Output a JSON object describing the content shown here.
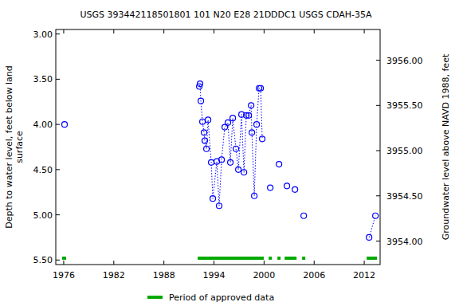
{
  "chart_data": {
    "type": "scatter",
    "title": "USGS 393442118501801 101  N20 E28 21DDDC1    USGS CDAH-35A",
    "ylabel": [
      "Depth to water level, feet below land",
      "surface"
    ],
    "y2label": "Groundwater level above NAVD 1988, feet",
    "xlim": [
      1975.05,
      2013.9
    ],
    "xticks": [
      1976,
      1982,
      1988,
      1994,
      2000,
      2006,
      2012
    ],
    "ylim": [
      5.55,
      2.95
    ],
    "yticks": [
      {
        "value": 3.0,
        "label": "3.00"
      },
      {
        "value": 3.5,
        "label": "3.50"
      },
      {
        "value": 4.0,
        "label": "4.00"
      },
      {
        "value": 4.5,
        "label": "4.50"
      },
      {
        "value": 5.0,
        "label": "5.00"
      },
      {
        "value": 5.5,
        "label": "5.50"
      }
    ],
    "y2lim": [
      3953.74,
      3956.34
    ],
    "y2ticks": [
      {
        "value": 3954,
        "label": "3954.00"
      },
      {
        "value": 3954.5,
        "label": "3954.50"
      },
      {
        "value": 3955,
        "label": "3955.00"
      },
      {
        "value": 3955.5,
        "label": "3955.50"
      },
      {
        "value": 3956,
        "label": "3956.00"
      }
    ],
    "series": [
      {
        "name": "Depth to water level",
        "color": "#0000ff",
        "marker": "open-circle",
        "line_style": "dotted",
        "x": [
          1976.1,
          null,
          1992.24,
          1992.33,
          1992.43,
          1992.62,
          1992.81,
          1992.9,
          1993.1,
          1993.29,
          1993.67,
          1993.86,
          1994.34,
          1994.62,
          1994.91,
          1995.29,
          1995.67,
          1995.96,
          1996.25,
          1996.63,
          1996.92,
          1997.3,
          1997.59,
          1997.87,
          1998.16,
          1998.45,
          1998.54,
          1998.83,
          1999.11,
          1999.4,
          1999.59,
          1999.78,
          null,
          2000.74,
          null,
          2001.79,
          null,
          2002.74,
          null,
          2003.7,
          null,
          2004.75,
          null,
          2012.58,
          2013.34
        ],
        "values": [
          4.0,
          null,
          3.58,
          3.55,
          3.74,
          3.97,
          4.09,
          4.18,
          4.27,
          3.95,
          4.42,
          4.82,
          4.41,
          4.9,
          4.39,
          4.03,
          3.98,
          4.42,
          3.93,
          4.27,
          4.5,
          3.89,
          4.53,
          3.9,
          3.9,
          3.79,
          4.09,
          4.79,
          4.0,
          3.6,
          3.6,
          4.16,
          null,
          4.7,
          null,
          4.44,
          null,
          4.68,
          null,
          4.72,
          null,
          5.01,
          null,
          5.25,
          5.01
        ]
      }
    ],
    "approved_periods": {
      "name": "Period of approved data",
      "color": "#00aa00",
      "ranges": [
        [
          1975.81,
          1976.29
        ],
        [
          1992.05,
          1999.97
        ],
        [
          2000.55,
          2000.93
        ],
        [
          2001.6,
          2001.98
        ],
        [
          2002.46,
          2003.89
        ],
        [
          2004.56,
          2004.94
        ],
        [
          2012.29,
          2013.53
        ]
      ]
    }
  }
}
